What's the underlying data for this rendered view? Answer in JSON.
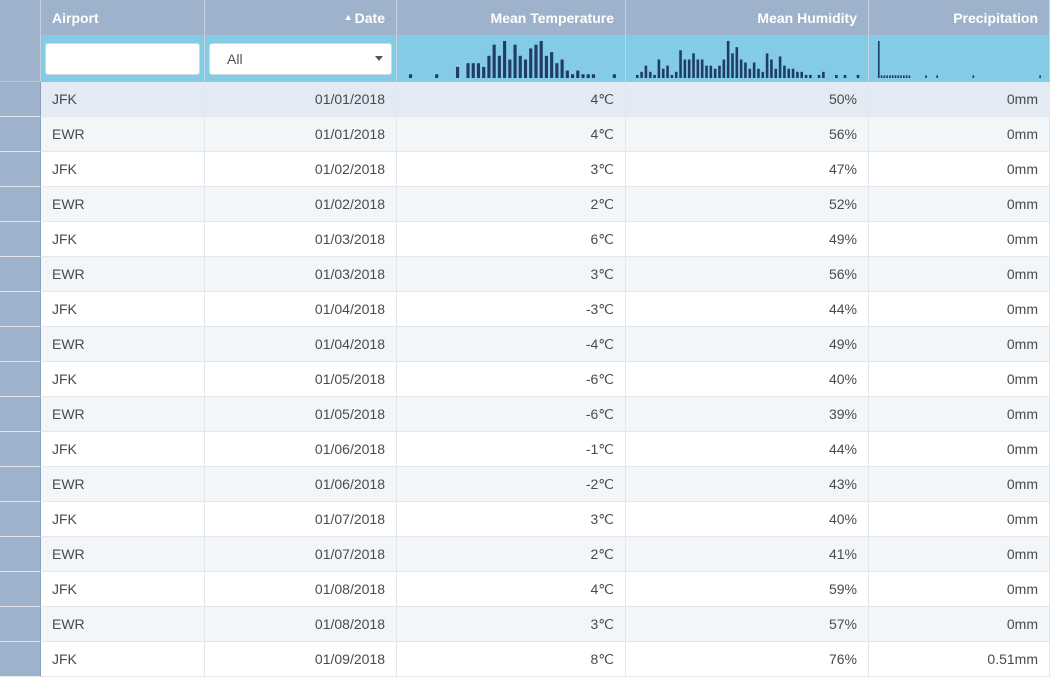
{
  "columns": {
    "airport": "Airport",
    "date": "Date",
    "temp": "Mean Temperature",
    "humidity": "Mean Humidity",
    "precip": "Precipitation"
  },
  "sort": {
    "column": "date",
    "direction": "ascending",
    "indicator": "▲"
  },
  "filters": {
    "airport_value": "",
    "date_selected": "All"
  },
  "histograms": {
    "temp": [
      1,
      0,
      0,
      0,
      0,
      1,
      0,
      0,
      0,
      3,
      0,
      4,
      4,
      4,
      3,
      6,
      9,
      6,
      10,
      5,
      9,
      6,
      5,
      8,
      9,
      10,
      6,
      7,
      4,
      5,
      2,
      1,
      2,
      1,
      1,
      1,
      0,
      0,
      0,
      1
    ],
    "humidity": [
      1,
      2,
      4,
      2,
      1,
      6,
      3,
      4,
      1,
      2,
      9,
      6,
      6,
      8,
      6,
      6,
      4,
      4,
      3,
      4,
      6,
      12,
      8,
      10,
      6,
      5,
      3,
      5,
      3,
      2,
      8,
      6,
      3,
      7,
      4,
      3,
      3,
      2,
      2,
      1,
      1,
      0,
      1,
      2,
      0,
      0,
      1,
      0,
      1,
      0,
      0,
      1
    ],
    "precip": [
      14,
      1,
      1,
      1,
      1,
      1,
      1,
      1,
      1,
      1,
      1,
      1,
      0,
      0,
      0,
      0,
      0,
      1,
      0,
      0,
      0,
      1,
      0,
      0,
      0,
      0,
      0,
      0,
      0,
      0,
      0,
      0,
      0,
      0,
      1,
      0,
      0,
      0,
      0,
      0,
      0,
      0,
      0,
      0,
      0,
      0,
      0,
      0,
      0,
      0,
      0,
      0,
      0,
      0,
      0,
      0,
      0,
      0,
      1
    ]
  },
  "rows": [
    {
      "airport": "JFK",
      "date": "01/01/2018",
      "temp": "4℃",
      "humidity": "50%",
      "precip": "0mm"
    },
    {
      "airport": "EWR",
      "date": "01/01/2018",
      "temp": "4℃",
      "humidity": "56%",
      "precip": "0mm"
    },
    {
      "airport": "JFK",
      "date": "01/02/2018",
      "temp": "3℃",
      "humidity": "47%",
      "precip": "0mm"
    },
    {
      "airport": "EWR",
      "date": "01/02/2018",
      "temp": "2℃",
      "humidity": "52%",
      "precip": "0mm"
    },
    {
      "airport": "JFK",
      "date": "01/03/2018",
      "temp": "6℃",
      "humidity": "49%",
      "precip": "0mm"
    },
    {
      "airport": "EWR",
      "date": "01/03/2018",
      "temp": "3℃",
      "humidity": "56%",
      "precip": "0mm"
    },
    {
      "airport": "JFK",
      "date": "01/04/2018",
      "temp": "-3℃",
      "humidity": "44%",
      "precip": "0mm"
    },
    {
      "airport": "EWR",
      "date": "01/04/2018",
      "temp": "-4℃",
      "humidity": "49%",
      "precip": "0mm"
    },
    {
      "airport": "JFK",
      "date": "01/05/2018",
      "temp": "-6℃",
      "humidity": "40%",
      "precip": "0mm"
    },
    {
      "airport": "EWR",
      "date": "01/05/2018",
      "temp": "-6℃",
      "humidity": "39%",
      "precip": "0mm"
    },
    {
      "airport": "JFK",
      "date": "01/06/2018",
      "temp": "-1℃",
      "humidity": "44%",
      "precip": "0mm"
    },
    {
      "airport": "EWR",
      "date": "01/06/2018",
      "temp": "-2℃",
      "humidity": "43%",
      "precip": "0mm"
    },
    {
      "airport": "JFK",
      "date": "01/07/2018",
      "temp": "3℃",
      "humidity": "40%",
      "precip": "0mm"
    },
    {
      "airport": "EWR",
      "date": "01/07/2018",
      "temp": "2℃",
      "humidity": "41%",
      "precip": "0mm"
    },
    {
      "airport": "JFK",
      "date": "01/08/2018",
      "temp": "4℃",
      "humidity": "59%",
      "precip": "0mm"
    },
    {
      "airport": "EWR",
      "date": "01/08/2018",
      "temp": "3℃",
      "humidity": "57%",
      "precip": "0mm"
    },
    {
      "airport": "JFK",
      "date": "01/09/2018",
      "temp": "8℃",
      "humidity": "76%",
      "precip": "0.51mm"
    }
  ],
  "colors": {
    "header_bg": "#9eb2cb",
    "filter_bg": "#84cce6",
    "histogram_bar": "#1f3d66",
    "row_alt": "#f3f6f9",
    "row_active": "#e2eaf3"
  }
}
